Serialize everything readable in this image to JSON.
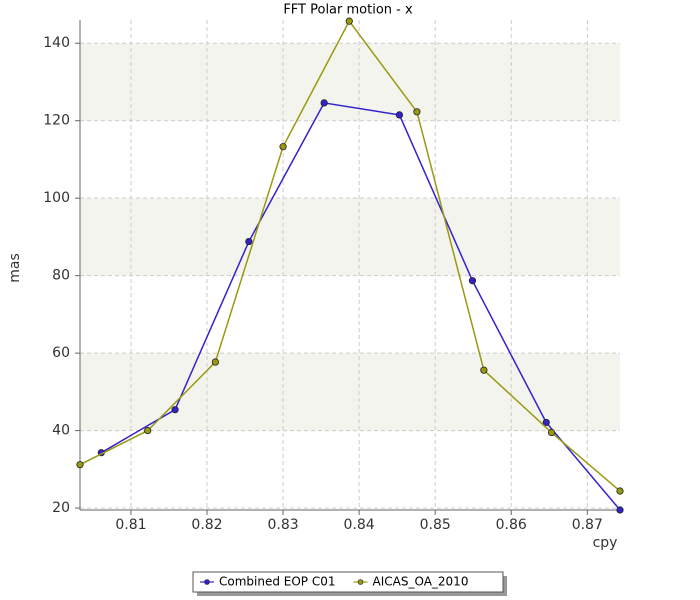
{
  "chart_data": {
    "type": "line",
    "title": "FFT Polar motion - x",
    "x_label": "cpy",
    "y_label": "mas",
    "series": [
      {
        "name": "Combined EOP C01",
        "color": "#3322cc",
        "x": [
          0.8061,
          0.8158,
          0.8255,
          0.8354,
          0.8453,
          0.8549,
          0.8646,
          0.8743
        ],
        "values": [
          34.3,
          45.4,
          88.8,
          124.6,
          121.5,
          78.7,
          42.1,
          19.5
        ]
      },
      {
        "name": "AICAS_OA_2010",
        "color": "#999911",
        "x": [
          0.8033,
          0.8122,
          0.8211,
          0.83,
          0.8387,
          0.8476,
          0.8564,
          0.8653,
          0.8743
        ],
        "values": [
          31.2,
          40,
          57.7,
          113.3,
          145.7,
          122.3,
          55.6,
          39.5,
          24.4
        ]
      }
    ],
    "xlim": [
      0.8033,
      0.8743
    ],
    "ylim": [
      19.5,
      146
    ],
    "xticks": [
      0.81,
      0.82,
      0.83,
      0.84,
      0.85,
      0.86,
      0.87
    ],
    "yticks": [
      20,
      40,
      60,
      80,
      100,
      120,
      140
    ],
    "grid": true,
    "alternating_bands": true,
    "legend": "bottom"
  }
}
